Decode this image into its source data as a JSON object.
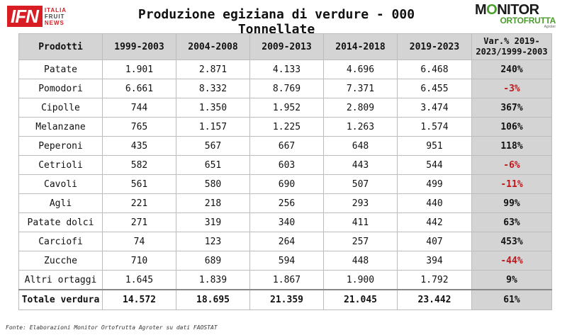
{
  "title": "Produzione egiziana di verdure - 000 Tonnellate",
  "logo_left": {
    "mark": "IFN",
    "line1": "ITALIA",
    "line2": "FRUIT",
    "line3": "NEWS"
  },
  "logo_right": {
    "line1a": "M",
    "line1b": "O",
    "line1c": "NITOR",
    "line2": "ORTOFRUTTA",
    "line3": "Agroter"
  },
  "colors": {
    "negative": "#c0161b",
    "header_bg": "#d4d4d4",
    "brand_red": "#d81e24",
    "brand_green": "#4a9d2b"
  },
  "table": {
    "headers": [
      "Prodotti",
      "1999-2003",
      "2004-2008",
      "2009-2013",
      "2014-2018",
      "2019-2023",
      "Var.% 2019-2023/1999-2003"
    ],
    "rows": [
      {
        "cells": [
          "Patate",
          "1.901",
          "2.871",
          "4.133",
          "4.696",
          "6.468",
          "240%"
        ],
        "neg": false
      },
      {
        "cells": [
          "Pomodori",
          "6.661",
          "8.332",
          "8.769",
          "7.371",
          "6.455",
          "-3%"
        ],
        "neg": true
      },
      {
        "cells": [
          "Cipolle",
          "744",
          "1.350",
          "1.952",
          "2.809",
          "3.474",
          "367%"
        ],
        "neg": false
      },
      {
        "cells": [
          "Melanzane",
          "765",
          "1.157",
          "1.225",
          "1.263",
          "1.574",
          "106%"
        ],
        "neg": false
      },
      {
        "cells": [
          "Peperoni",
          "435",
          "567",
          "667",
          "648",
          "951",
          "118%"
        ],
        "neg": false
      },
      {
        "cells": [
          "Cetrioli",
          "582",
          "651",
          "603",
          "443",
          "544",
          "-6%"
        ],
        "neg": true
      },
      {
        "cells": [
          "Cavoli",
          "561",
          "580",
          "690",
          "507",
          "499",
          "-11%"
        ],
        "neg": true
      },
      {
        "cells": [
          "Agli",
          "221",
          "218",
          "256",
          "293",
          "440",
          "99%"
        ],
        "neg": false
      },
      {
        "cells": [
          "Patate dolci",
          "271",
          "319",
          "340",
          "411",
          "442",
          "63%"
        ],
        "neg": false
      },
      {
        "cells": [
          "Carciofi",
          "74",
          "123",
          "264",
          "257",
          "407",
          "453%"
        ],
        "neg": false
      },
      {
        "cells": [
          "Zucche",
          "710",
          "689",
          "594",
          "448",
          "394",
          "-44%"
        ],
        "neg": true
      },
      {
        "cells": [
          "Altri ortaggi",
          "1.645",
          "1.839",
          "1.867",
          "1.900",
          "1.792",
          "9%"
        ],
        "neg": false
      }
    ],
    "total": [
      "Totale verdura",
      "14.572",
      "18.695",
      "21.359",
      "21.045",
      "23.442",
      "61%"
    ]
  },
  "footer": "Fonte: Elaborazioni Monitor Ortofrutta Agroter su dati FAOSTAT"
}
